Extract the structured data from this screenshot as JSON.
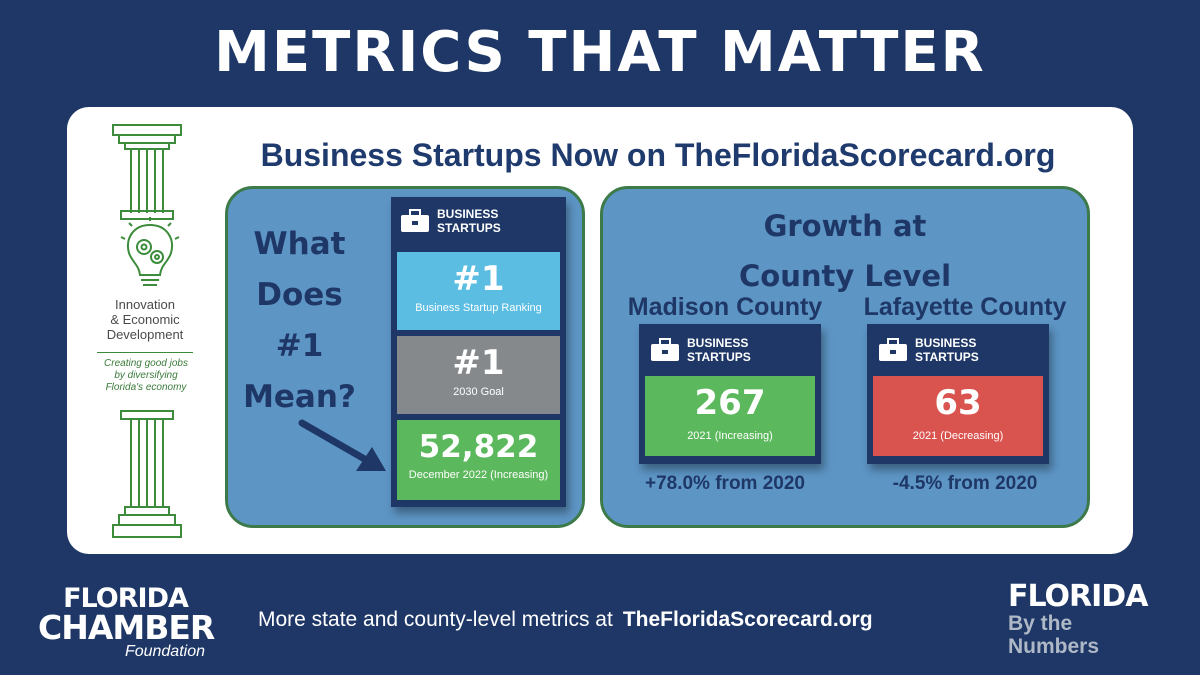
{
  "header": {
    "title": "METRICS THAT MATTER"
  },
  "sidebar": {
    "title_line1": "Innovation",
    "title_line2": "& Economic",
    "title_line3": "Development",
    "tagline_line1": "Creating good jobs",
    "tagline_line2": "by diversifying",
    "tagline_line3": "Florida's economy",
    "icons": [
      "pillar-icon",
      "lightbulb-gears-icon",
      "pillar-icon"
    ]
  },
  "card": {
    "heading": "Business Startups Now on TheFloridaScorecard.org"
  },
  "left_panel": {
    "question_line1": "What",
    "question_line2": "Does",
    "question_line3": "#1",
    "question_line4": "Mean?",
    "badge_line1": "BUSINESS",
    "badge_line2": "STARTUPS",
    "tiles": [
      {
        "value": "#1",
        "label": "Business Startup Ranking"
      },
      {
        "value": "#1",
        "label": "2030 Goal"
      },
      {
        "value": "52,822",
        "label": "December 2022 (Increasing)"
      }
    ]
  },
  "right_panel": {
    "title_line1": "Growth at",
    "title_line2": "County Level",
    "counties": [
      {
        "name": "Madison County",
        "badge_line1": "BUSINESS",
        "badge_line2": "STARTUPS",
        "value": "267",
        "label": "2021 (Increasing)",
        "change": "+78.0% from 2020"
      },
      {
        "name": "Lafayette County",
        "badge_line1": "BUSINESS",
        "badge_line2": "STARTUPS",
        "value": "63",
        "label": "2021 (Decreasing)",
        "change": "-4.5% from 2020"
      }
    ]
  },
  "footer": {
    "chamber_line1": "FLORIDA",
    "chamber_line2": "CHAMBER",
    "chamber_line3": "Foundation",
    "text": "More state and county-level metrics at",
    "url": "TheFloridaScorecard.org",
    "fbtn_line1": "FLORIDA",
    "fbtn_line2": "By the Numbers"
  },
  "colors": {
    "background": "#1e3766",
    "panel": "#5d95c5",
    "increase": "#5cb85c",
    "decrease": "#d9534f",
    "rank_tile": "#5bbde2",
    "goal_tile": "#85898c"
  }
}
